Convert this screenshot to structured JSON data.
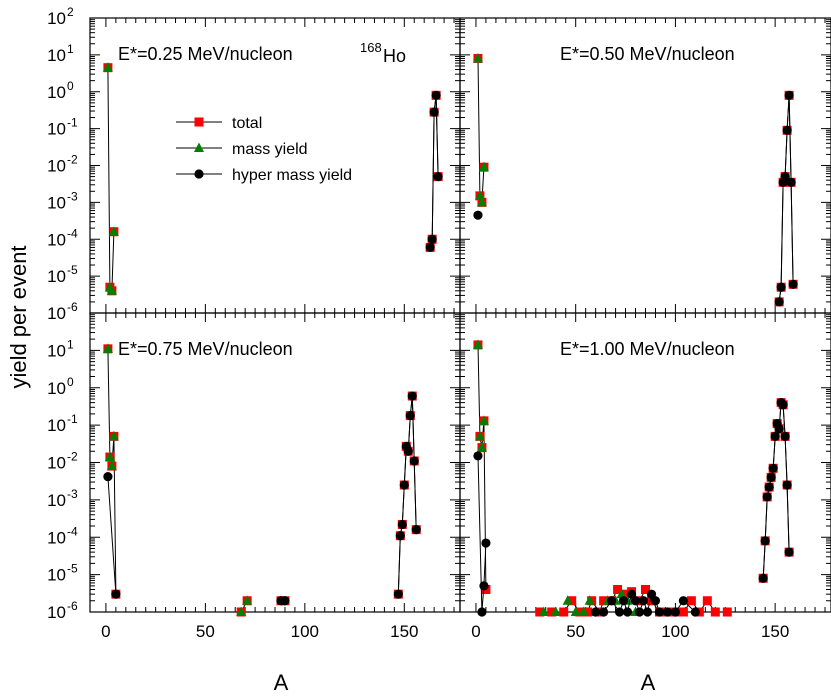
{
  "figure": {
    "ylabel": "yield per event",
    "xlabel": "A",
    "xticks": [
      "0",
      "50",
      "100",
      "150"
    ],
    "yticks": [
      {
        "base": "10",
        "exp": "-6"
      },
      {
        "base": "10",
        "exp": "-5"
      },
      {
        "base": "10",
        "exp": "-4"
      },
      {
        "base": "10",
        "exp": "-3"
      },
      {
        "base": "10",
        "exp": "-2"
      },
      {
        "base": "10",
        "exp": "-1"
      },
      {
        "base": "10",
        "exp": "0"
      },
      {
        "base": "10",
        "exp": "1"
      },
      {
        "base": "10",
        "exp": "2"
      }
    ]
  },
  "legend": [
    {
      "label": "total",
      "marker": "square",
      "color": "#ff0000"
    },
    {
      "label": "mass yield",
      "marker": "triangle",
      "color": "#008000"
    },
    {
      "label": "hyper mass yield",
      "marker": "circle",
      "color": "#000000"
    }
  ],
  "chart_data": [
    {
      "type": "scatter",
      "panel": "top-left",
      "annotation": "E*=0.25 MeV/nucleon",
      "nucleus": {
        "mass": "168",
        "symbol": "Ho"
      },
      "x_scale": "linear",
      "xlim": [
        -8,
        178
      ],
      "y_scale": "log",
      "ylim": [
        1e-06,
        100
      ],
      "series": [
        {
          "name": "total",
          "x": [
            1,
            2,
            3,
            4,
            163,
            164,
            165,
            166,
            167
          ],
          "y": [
            4.5,
            5e-06,
            4e-06,
            0.00016,
            6e-05,
            0.0001,
            0.28,
            0.8,
            0.005
          ]
        },
        {
          "name": "mass yield",
          "x": [
            1,
            2,
            3,
            4
          ],
          "y": [
            4.5,
            5e-06,
            4e-06,
            0.00016
          ]
        },
        {
          "name": "hyper mass yield",
          "x": [
            163,
            164,
            165,
            166,
            167
          ],
          "y": [
            6e-05,
            0.0001,
            0.28,
            0.8,
            0.005
          ]
        }
      ]
    },
    {
      "type": "scatter",
      "panel": "top-right",
      "annotation": "E*=0.50 MeV/nucleon",
      "x_scale": "linear",
      "xlim": [
        -8,
        178
      ],
      "y_scale": "log",
      "ylim": [
        1e-06,
        100
      ],
      "series": [
        {
          "name": "total",
          "x": [
            1,
            2,
            3,
            4,
            152,
            153,
            154,
            155,
            156,
            157,
            158,
            159
          ],
          "y": [
            8,
            0.0015,
            0.001,
            0.009,
            2e-06,
            5e-06,
            0.0035,
            0.005,
            0.09,
            0.8,
            0.0035,
            6e-06
          ]
        },
        {
          "name": "mass yield",
          "x": [
            1,
            2,
            3,
            4
          ],
          "y": [
            8,
            0.0015,
            0.001,
            0.009
          ]
        },
        {
          "name": "hyper mass yield",
          "x": [
            1,
            152,
            153,
            154,
            155,
            156,
            157,
            158,
            159
          ],
          "y": [
            0.00045,
            2e-06,
            5e-06,
            0.0035,
            0.005,
            0.09,
            0.8,
            0.0035,
            6e-06
          ]
        }
      ]
    },
    {
      "type": "scatter",
      "panel": "bottom-left",
      "annotation": "E*=0.75 MeV/nucleon",
      "x_scale": "linear",
      "xlim": [
        -8,
        178
      ],
      "y_scale": "log",
      "ylim": [
        1e-06,
        100
      ],
      "series": [
        {
          "name": "total",
          "x": [
            1,
            2,
            3,
            4,
            5,
            68,
            71,
            88,
            90,
            147,
            148,
            149,
            150,
            151,
            152,
            153,
            154,
            155,
            156
          ],
          "y": [
            11,
            0.014,
            0.008,
            0.05,
            3e-06,
            1e-06,
            2e-06,
            2e-06,
            2e-06,
            3e-06,
            0.00011,
            0.00022,
            0.0025,
            0.027,
            0.02,
            0.18,
            0.6,
            0.011,
            0.00016
          ]
        },
        {
          "name": "mass yield",
          "x": [
            1,
            2,
            3,
            4,
            68,
            71
          ],
          "y": [
            11,
            0.014,
            0.008,
            0.05,
            1e-06,
            2e-06
          ]
        },
        {
          "name": "hyper mass yield",
          "x": [
            1,
            5,
            88,
            90,
            147,
            148,
            149,
            150,
            151,
            152,
            153,
            154,
            155,
            156
          ],
          "y": [
            0.0042,
            3e-06,
            2e-06,
            2e-06,
            3e-06,
            0.00011,
            0.00022,
            0.0025,
            0.027,
            0.02,
            0.18,
            0.6,
            0.011,
            0.00016
          ]
        }
      ]
    },
    {
      "type": "scatter",
      "panel": "bottom-right",
      "annotation": "E*=1.00 MeV/nucleon",
      "x_scale": "linear",
      "xlim": [
        -8,
        178
      ],
      "y_scale": "log",
      "ylim": [
        1e-06,
        100
      ],
      "series": [
        {
          "name": "total",
          "x": [
            1,
            2,
            3,
            4,
            5,
            32,
            38,
            44,
            48,
            52,
            56,
            58,
            62,
            64,
            68,
            71,
            74,
            78,
            82,
            85,
            88,
            92,
            96,
            100,
            104,
            108,
            112,
            116,
            120,
            126,
            144,
            145,
            146,
            147,
            148,
            149,
            150,
            151,
            152,
            153,
            154,
            155,
            156,
            157
          ],
          "y": [
            14,
            0.05,
            0.025,
            0.13,
            4e-06,
            1e-06,
            1e-06,
            1e-06,
            2e-06,
            1e-06,
            1e-06,
            2e-06,
            1e-06,
            2e-06,
            2e-06,
            4e-06,
            3e-06,
            3.5e-06,
            2e-06,
            4e-06,
            2e-06,
            1e-06,
            1e-06,
            1e-06,
            1e-06,
            2e-06,
            1e-06,
            2e-06,
            1e-06,
            1e-06,
            8e-06,
            8e-05,
            0.0012,
            0.0022,
            0.004,
            0.007,
            0.05,
            0.11,
            0.08,
            0.4,
            0.35,
            0.05,
            0.0025,
            4e-05
          ]
        },
        {
          "name": "mass yield",
          "x": [
            1,
            2,
            3,
            4,
            34,
            40,
            46,
            50,
            54,
            57,
            60,
            63,
            66,
            70,
            73,
            76,
            80
          ],
          "y": [
            14,
            0.05,
            0.025,
            0.13,
            1e-06,
            1e-06,
            2e-06,
            1e-06,
            1e-06,
            2e-06,
            1e-06,
            1e-06,
            2e-06,
            2e-06,
            3e-06,
            2e-06,
            1e-06
          ]
        },
        {
          "name": "hyper mass yield",
          "x": [
            1,
            3,
            4,
            5,
            60,
            64,
            68,
            72,
            74,
            76,
            78,
            80,
            82,
            84,
            86,
            88,
            90,
            92,
            96,
            100,
            104,
            110,
            144,
            145,
            146,
            147,
            148,
            149,
            150,
            151,
            152,
            153,
            154,
            155,
            156,
            157
          ],
          "y": [
            0.015,
            1e-06,
            5e-06,
            7e-05,
            1e-06,
            1e-06,
            2e-06,
            1e-06,
            2e-06,
            1e-06,
            3e-06,
            2e-06,
            1e-06,
            2e-06,
            1e-06,
            3e-06,
            2e-06,
            1e-06,
            1e-06,
            1e-06,
            2e-06,
            1e-06,
            8e-06,
            8e-05,
            0.0012,
            0.0022,
            0.004,
            0.007,
            0.05,
            0.11,
            0.08,
            0.4,
            0.35,
            0.05,
            0.0025,
            4e-05
          ]
        }
      ]
    }
  ]
}
